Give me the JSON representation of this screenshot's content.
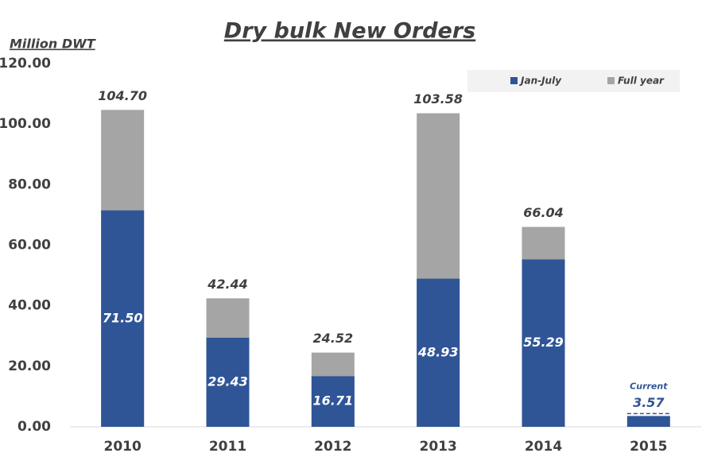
{
  "chart_data": {
    "type": "bar",
    "title": "Dry bulk New Orders",
    "y_label": "Million DWT",
    "categories": [
      "2010",
      "2011",
      "2012",
      "2013",
      "2014",
      "2015"
    ],
    "series": [
      {
        "name": "Jan-July",
        "color": "#2f5597",
        "values": [
          71.5,
          29.43,
          16.71,
          48.93,
          55.29,
          3.57
        ],
        "value_labels": [
          "71.50",
          "29.43",
          "16.71",
          "48.93",
          "55.29",
          "3.57"
        ]
      },
      {
        "name": "Full year",
        "color": "#a5a5a5",
        "values": [
          104.7,
          42.44,
          24.52,
          103.58,
          66.04,
          null
        ],
        "value_labels": [
          "104.70",
          "42.44",
          "24.52",
          "103.58",
          "66.04",
          null
        ]
      }
    ],
    "annotation": {
      "text": "Current",
      "category": "2015"
    },
    "ylim": [
      0,
      120
    ],
    "yticks": [
      {
        "value": 0,
        "label": "0.00"
      },
      {
        "value": 20,
        "label": "20.00"
      },
      {
        "value": 40,
        "label": "40.00"
      },
      {
        "value": 60,
        "label": "60.00"
      },
      {
        "value": 80,
        "label": "80.00"
      },
      {
        "value": 100,
        "label": "100.00"
      },
      {
        "value": 120,
        "label": "120.00"
      }
    ],
    "legend": "top-right"
  }
}
